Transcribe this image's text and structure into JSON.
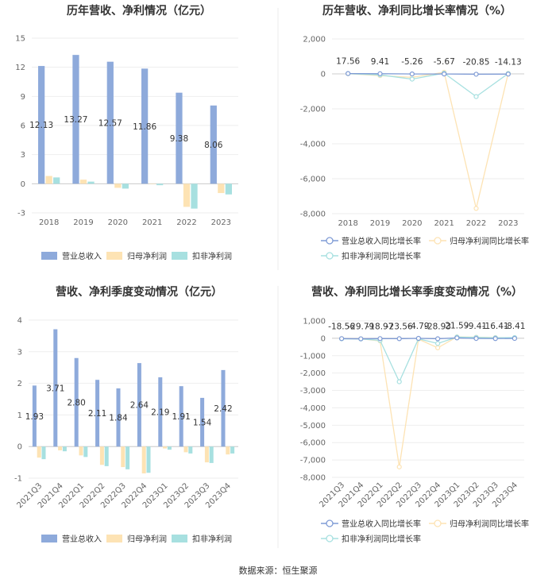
{
  "colors": {
    "revenue": "#8eaadb",
    "parent": "#fde3b4",
    "deducted": "#a7e0e0",
    "axis": "#cccccc",
    "grid": "#eeeeee"
  },
  "source": "数据来源：恒生聚源",
  "chart_data": [
    {
      "type": "bar",
      "title": "历年营收、净利情况（亿元）",
      "categories": [
        "2018",
        "2019",
        "2020",
        "2021",
        "2022",
        "2023"
      ],
      "ylim": [
        -3,
        15
      ],
      "yticks": [
        "15",
        "12",
        "9",
        "6",
        "3",
        "0",
        "-3"
      ],
      "series": [
        {
          "name": "营业总收入",
          "values": [
            12.13,
            13.27,
            12.57,
            11.86,
            9.38,
            8.06
          ],
          "labels": [
            "12.13",
            "13.27",
            "12.57",
            "11.86",
            "9.38",
            "8.06"
          ]
        },
        {
          "name": "归母净利润",
          "values": [
            0.8,
            0.42,
            -0.42,
            -0.03,
            -2.38,
            -0.96
          ]
        },
        {
          "name": "扣非净利润",
          "values": [
            0.65,
            0.22,
            -0.5,
            -0.15,
            -2.56,
            -1.1
          ]
        }
      ]
    },
    {
      "type": "line",
      "title": "历年营收、净利同比增长率情况（%）",
      "categories": [
        "2018",
        "2019",
        "2020",
        "2021",
        "2022",
        "2023"
      ],
      "ylim": [
        -8000,
        2000
      ],
      "yticks": [
        "2,000",
        "0",
        "-2,000",
        "-4,000",
        "-6,000",
        "-8,000"
      ],
      "series": [
        {
          "name": "营业总收入同比增长率",
          "values": [
            17.56,
            9.41,
            -5.26,
            -5.67,
            -20.85,
            -14.13
          ],
          "labels": [
            "17.56",
            "9.41",
            "-5.26",
            "-5.67",
            "-20.85",
            "-14.13"
          ]
        },
        {
          "name": "归母净利润同比增长率",
          "values": [
            10,
            -100,
            -200,
            90,
            -7700,
            30
          ]
        },
        {
          "name": "扣非净利润同比增长率",
          "values": [
            15,
            -60,
            -300,
            40,
            -1300,
            20
          ]
        }
      ]
    },
    {
      "type": "bar",
      "title": "营收、净利季度变动情况（亿元）",
      "categories": [
        "2021Q3",
        "2021Q4",
        "2022Q1",
        "2022Q2",
        "2022Q3",
        "2022Q4",
        "2023Q1",
        "2023Q2",
        "2023Q3",
        "2023Q4"
      ],
      "ylim": [
        -1,
        4
      ],
      "yticks": [
        "4",
        "3",
        "2",
        "1",
        "0",
        "-1"
      ],
      "series": [
        {
          "name": "营业总收入",
          "values": [
            1.93,
            3.71,
            2.8,
            2.11,
            1.84,
            2.64,
            2.19,
            1.91,
            1.54,
            2.42
          ],
          "labels": [
            "1.93",
            "3.71",
            "2.80",
            "2.11",
            "1.84",
            "2.64",
            "2.19",
            "1.91",
            "1.54",
            "2.42"
          ]
        },
        {
          "name": "归母净利润",
          "values": [
            -0.35,
            -0.12,
            -0.28,
            -0.58,
            -0.65,
            -0.85,
            -0.06,
            -0.18,
            -0.5,
            -0.25
          ]
        },
        {
          "name": "扣非净利润",
          "values": [
            -0.4,
            -0.15,
            -0.33,
            -0.62,
            -0.72,
            -0.83,
            -0.1,
            -0.22,
            -0.52,
            -0.22
          ]
        }
      ]
    },
    {
      "type": "line",
      "title": "营收、净利同比增长率季度变动情况（%）",
      "categories": [
        "2021Q3",
        "2021Q4",
        "2022Q1",
        "2022Q2",
        "2022Q3",
        "2022Q4",
        "2023Q1",
        "2023Q2",
        "2023Q3",
        "2023Q4"
      ],
      "ylim": [
        -8000,
        1000
      ],
      "yticks": [
        "1,000",
        "0",
        "-1,000",
        "-2,000",
        "-3,000",
        "-4,000",
        "-5,000",
        "-6,000",
        "-7,000",
        "-8,000"
      ],
      "series": [
        {
          "name": "营业总收入同比增长率",
          "values": [
            -18.56,
            -29.79,
            -18.97,
            -23.56,
            -4.79,
            -28.93,
            21.59,
            -9.41,
            -16.41,
            -8.41
          ],
          "labels": [
            "-18.56",
            "-29.79",
            "-18.97",
            "-23.56",
            "-4.79",
            "-28.93",
            "21.59",
            "-9.41",
            "-16.41",
            "-8.41"
          ]
        },
        {
          "name": "归母净利润同比增长率",
          "values": [
            -20,
            -30,
            -150,
            -7400,
            -50,
            -550,
            80,
            60,
            40,
            30
          ]
        },
        {
          "name": "扣非净利润同比增长率",
          "values": [
            -30,
            -40,
            -120,
            -2500,
            -30,
            -300,
            70,
            50,
            30,
            40
          ]
        }
      ]
    }
  ]
}
